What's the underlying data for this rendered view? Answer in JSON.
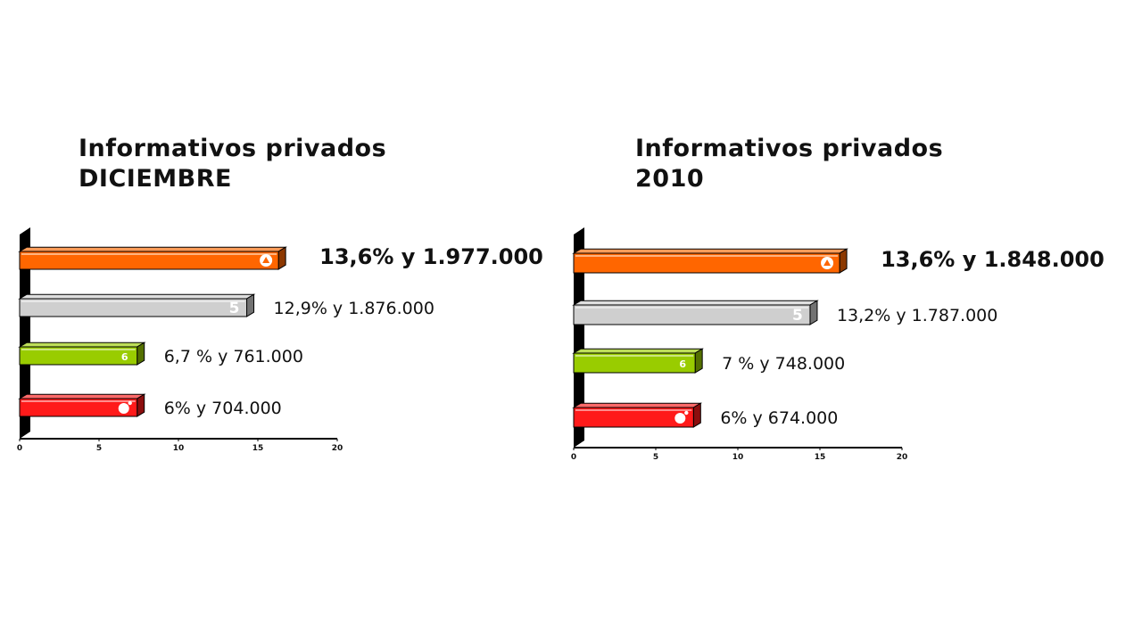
{
  "chart_data": [
    {
      "type": "bar",
      "orientation": "horizontal",
      "style": "3d",
      "title": "Informativos privados",
      "subtitle": "DICIEMBRE",
      "xlim": [
        0,
        20
      ],
      "xticks": [
        "0",
        "5",
        "10",
        "15",
        "20"
      ],
      "grid": false,
      "legend": "none",
      "bars": [
        {
          "value": 16.3,
          "label": "13,6% y 1.977.000",
          "color": "#ff6600",
          "icon": "antena3-logo-icon"
        },
        {
          "value": 14.3,
          "label": "12,9% y 1.876.000",
          "color": "#cfcfcf",
          "icon": "telecinco-logo-icon"
        },
        {
          "value": 7.4,
          "label": "6,7 % y 761.000",
          "color": "#99cc00",
          "icon": "lasexta-logo-icon"
        },
        {
          "value": 7.4,
          "label": "6% y 704.000",
          "color": "#ff1a1a",
          "icon": "cuatro-logo-icon"
        }
      ]
    },
    {
      "type": "bar",
      "orientation": "horizontal",
      "style": "3d",
      "title": "Informativos privados",
      "subtitle": "2010",
      "xlim": [
        0,
        20
      ],
      "xticks": [
        "0",
        "5",
        "10",
        "15",
        "20"
      ],
      "grid": false,
      "legend": "none",
      "bars": [
        {
          "value": 16.2,
          "label": "13,6% y 1.848.000",
          "color": "#ff6600",
          "icon": "antena3-logo-icon"
        },
        {
          "value": 14.4,
          "label": "13,2% y 1.787.000",
          "color": "#cfcfcf",
          "icon": "telecinco-logo-icon"
        },
        {
          "value": 7.4,
          "label": "7 % y 748.000",
          "color": "#99cc00",
          "icon": "lasexta-logo-icon"
        },
        {
          "value": 7.3,
          "label": "6% y 674.000",
          "color": "#ff1a1a",
          "icon": "cuatro-logo-icon"
        }
      ]
    }
  ]
}
